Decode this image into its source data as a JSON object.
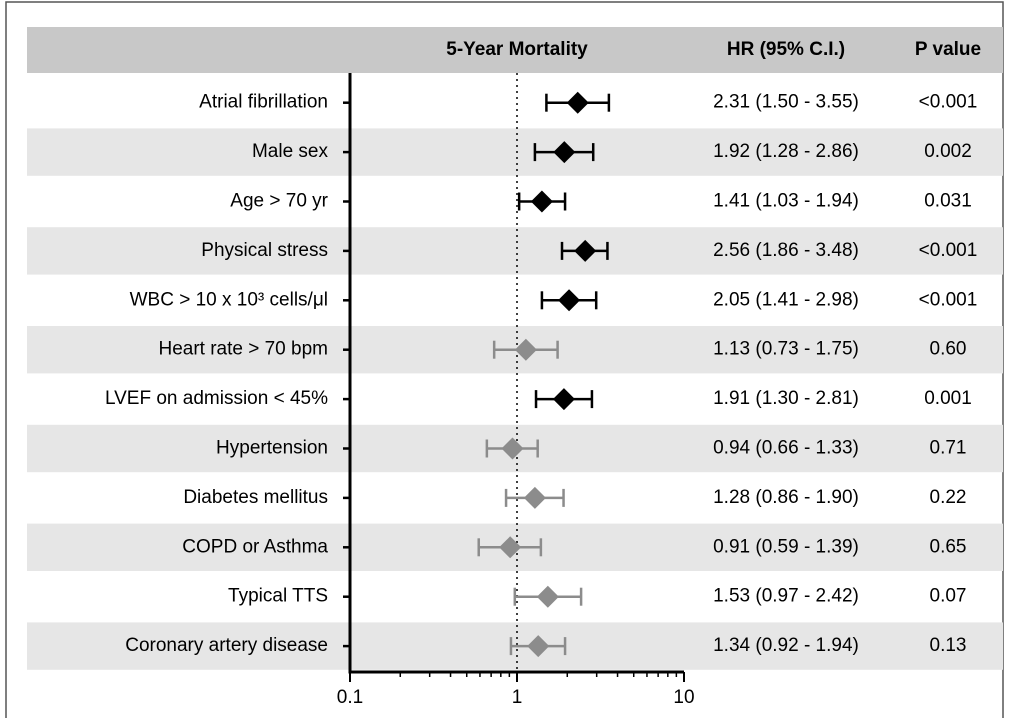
{
  "chart_data": {
    "type": "forest",
    "title": "5-Year Mortality",
    "columns": [
      "HR (95% C.I.)",
      "P value"
    ],
    "categories": [
      "Atrial fibrillation",
      "Male sex",
      "Age > 70 yr",
      "Physical stress",
      "WBC > 10 x 10³ cells/μl",
      "Heart rate > 70 bpm",
      "LVEF on admission < 45%",
      "Hypertension",
      "Diabetes mellitus",
      "COPD or Asthma",
      "Typical TTS",
      "Coronary artery disease"
    ],
    "values": [
      2.31,
      1.92,
      1.41,
      2.56,
      2.05,
      1.13,
      1.91,
      0.94,
      1.28,
      0.91,
      1.53,
      1.34
    ],
    "ci_low": [
      1.5,
      1.28,
      1.03,
      1.86,
      1.41,
      0.73,
      1.3,
      0.66,
      0.86,
      0.59,
      0.97,
      0.92
    ],
    "ci_high": [
      3.55,
      2.86,
      1.94,
      3.48,
      2.98,
      1.75,
      2.81,
      1.33,
      1.9,
      1.39,
      2.42,
      1.94
    ],
    "value_labels": [
      "2.31 (1.50 - 3.55)",
      "1.92 (1.28 - 2.86)",
      "1.41 (1.03 - 1.94)",
      "2.56 (1.86 - 3.48)",
      "2.05 (1.41 - 2.98)",
      "1.13 (0.73 - 1.75)",
      "1.91 (1.30 - 2.81)",
      "0.94 (0.66 - 1.33)",
      "1.28 (0.86 - 1.90)",
      "0.91 (0.59 - 1.39)",
      "1.53 (0.97 - 2.42)",
      "1.34 (0.92 - 1.94)"
    ],
    "p_values": [
      "<0.001",
      "0.002",
      "0.031",
      "<0.001",
      "<0.001",
      "0.60",
      "0.001",
      "0.71",
      "0.22",
      "0.65",
      "0.07",
      "0.13"
    ],
    "colors": [
      "#000000",
      "#000000",
      "#000000",
      "#000000",
      "#000000",
      "#8c8c8c",
      "#000000",
      "#8c8c8c",
      "#8c8c8c",
      "#8c8c8c",
      "#8c8c8c",
      "#8c8c8c"
    ],
    "x_scale": "log",
    "xlim": [
      0.1,
      10
    ],
    "xticks": [
      0.1,
      1,
      10
    ],
    "xminorticks": [
      0.2,
      0.3,
      0.4,
      0.5,
      0.6,
      0.7,
      0.8,
      0.9,
      2,
      3,
      4,
      5,
      6,
      7,
      8,
      9
    ],
    "reference_line": 1,
    "row_shading": "#e6e6e6",
    "header_color": "#c8c8c8"
  }
}
